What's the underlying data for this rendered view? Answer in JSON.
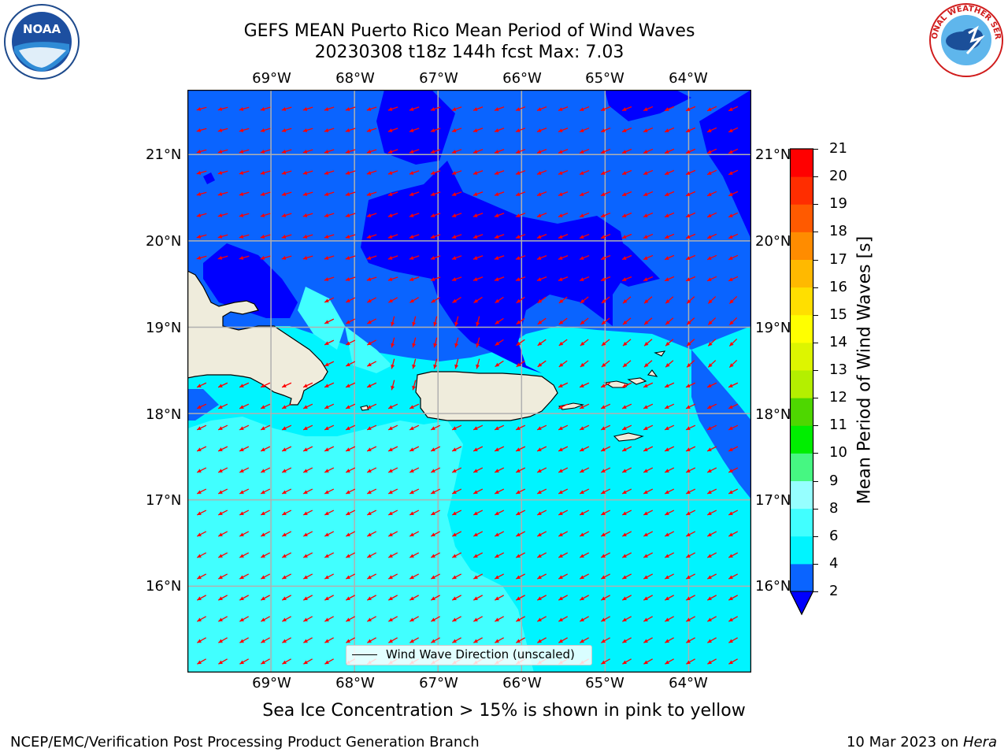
{
  "title_line1": "GEFS MEAN Puerto Rico Mean Period of Wind Waves",
  "title_line2": "20230308 t18z 144h fcst   Max: 7.03",
  "note": "Sea Ice Concentration > 15% is shown in pink to yellow",
  "footer_left": "NCEP/EMC/Verification Post Processing Product Generation Branch",
  "footer_right_prefix": "10 Mar 2023 on ",
  "footer_right_host": "Hera",
  "legend_label": "Wind Wave Direction (unscaled)",
  "colorbar": {
    "label": "Mean Period of Wind Waves [s]",
    "ticks": [
      "2",
      "4",
      "6",
      "8",
      "9",
      "10",
      "11",
      "12",
      "13",
      "14",
      "15",
      "16",
      "17",
      "18",
      "19",
      "20",
      "21"
    ],
    "colors": [
      "#0a64ff",
      "#00f4ff",
      "#41ffff",
      "#96ffff",
      "#46f782",
      "#00ee00",
      "#4ed700",
      "#b4ef00",
      "#ddf500",
      "#ffff00",
      "#ffdf00",
      "#ffb900",
      "#ff8c00",
      "#ff5a00",
      "#ff2d00",
      "#ff0000"
    ],
    "extend_color": "#0000ff"
  },
  "lon_labels": [
    "69°W",
    "68°W",
    "67°W",
    "66°W",
    "65°W",
    "64°W"
  ],
  "lat_labels": [
    "21°N",
    "20°N",
    "19°N",
    "18°N",
    "17°N",
    "16°N"
  ],
  "map": {
    "lon_range": [
      -70.0,
      -63.25
    ],
    "lat_range": [
      15.0,
      21.75
    ],
    "land_color": "#efecdc",
    "arrow_color": "#ff0000",
    "grid_color": "#b0b0b0"
  },
  "logos": {
    "noaa_text": "NOAA",
    "nws_text": "NATIONAL WEATHER SERVICE"
  }
}
